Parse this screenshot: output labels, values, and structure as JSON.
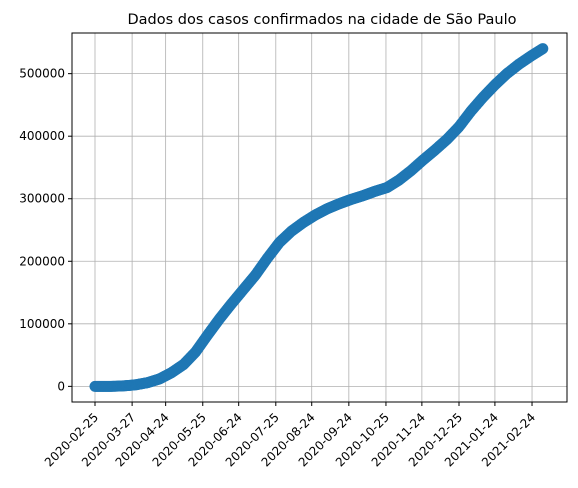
{
  "chart_data": {
    "type": "scatter",
    "title": "Dados dos casos confirmados na cidade de São Paulo",
    "xlabel": "",
    "ylabel": "",
    "x_start": "2020-02-25",
    "x_end": "2021-03-06",
    "xtick_labels": [
      "2020-02-25",
      "2020-03-27",
      "2020-04-24",
      "2020-05-25",
      "2020-06-24",
      "2020-07-25",
      "2020-08-24",
      "2020-09-24",
      "2020-10-25",
      "2020-11-24",
      "2020-12-25",
      "2021-01-24",
      "2021-02-24"
    ],
    "yticks": [
      0,
      100000,
      200000,
      300000,
      400000,
      500000
    ],
    "ylim": [
      -25000,
      565000
    ],
    "grid": true,
    "color": "#1f77b4",
    "series": [
      {
        "x": [
          "2020-02-25",
          "2020-03-10",
          "2020-03-20",
          "2020-03-30",
          "2020-04-09",
          "2020-04-19",
          "2020-04-29",
          "2020-05-09",
          "2020-05-19",
          "2020-05-29",
          "2020-06-08",
          "2020-06-18",
          "2020-06-28",
          "2020-07-08",
          "2020-07-18",
          "2020-07-28",
          "2020-08-07",
          "2020-08-17",
          "2020-08-27",
          "2020-09-06",
          "2020-09-16",
          "2020-09-26",
          "2020-10-06",
          "2020-10-16",
          "2020-10-26",
          "2020-11-05",
          "2020-11-15",
          "2020-11-25",
          "2020-12-05",
          "2020-12-15",
          "2020-12-25",
          "2021-01-04",
          "2021-01-14",
          "2021-01-24",
          "2021-02-03",
          "2021-02-13",
          "2021-02-23",
          "2021-03-05"
        ],
        "y": [
          0,
          50,
          800,
          2500,
          6000,
          12000,
          22000,
          35000,
          55000,
          82000,
          108000,
          132000,
          155000,
          178000,
          205000,
          230000,
          248000,
          262000,
          274000,
          284000,
          292000,
          299000,
          305000,
          312000,
          318000,
          330000,
          345000,
          362000,
          378000,
          395000,
          415000,
          440000,
          462000,
          482000,
          500000,
          515000,
          528000,
          540000
        ]
      }
    ]
  }
}
